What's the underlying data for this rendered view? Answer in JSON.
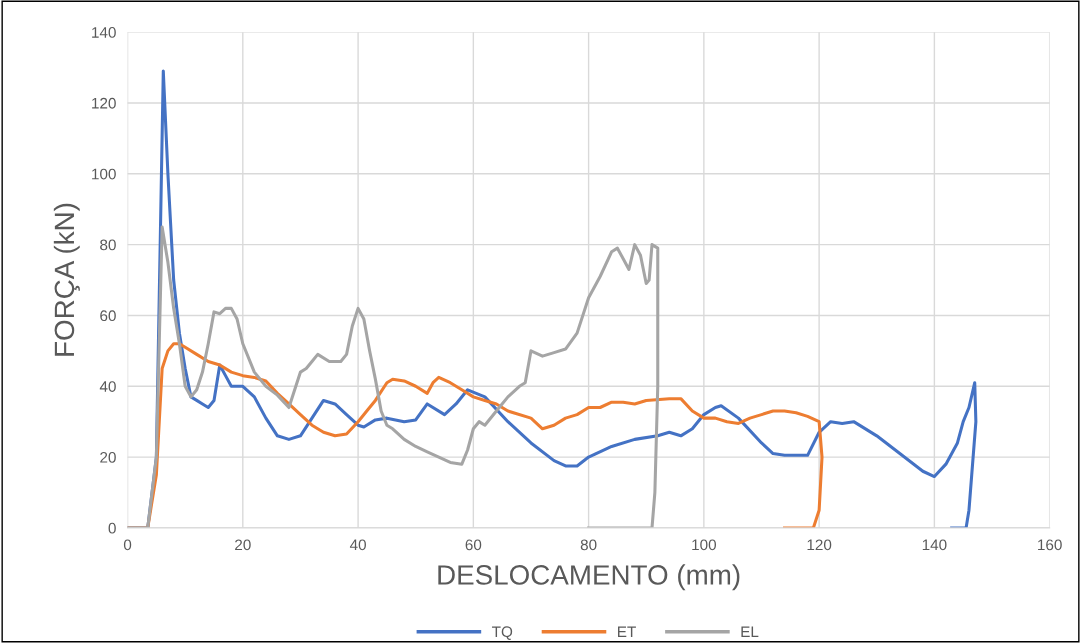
{
  "chart_data": {
    "type": "line",
    "xlabel": "DESLOCAMENTO (mm)",
    "ylabel": "FORÇA (kN)",
    "xlim": [
      0,
      160
    ],
    "xticks": [
      0,
      20,
      40,
      60,
      80,
      100,
      120,
      140,
      160
    ],
    "ylim": [
      0,
      140
    ],
    "yticks": [
      0,
      20,
      40,
      60,
      80,
      100,
      120,
      140
    ],
    "grid": true,
    "legend": "bottom",
    "marker": "none",
    "line_style": "solid",
    "series": [
      {
        "name": "TQ",
        "color": "#4472c4",
        "x": [
          0,
          3.5,
          5,
          6.2,
          7,
          8,
          9,
          10,
          11,
          12,
          13,
          14,
          15,
          16,
          17,
          18,
          20,
          22,
          24,
          26,
          28,
          30,
          32,
          34,
          36,
          38,
          40,
          41,
          43,
          45,
          48,
          50,
          52,
          55,
          57,
          59,
          62,
          66,
          70,
          74,
          76,
          78,
          80,
          84,
          88,
          92,
          94,
          96,
          98,
          100,
          102,
          103,
          106,
          110,
          112,
          114,
          118,
          120,
          122,
          124,
          126,
          130,
          134,
          138,
          140,
          142,
          144,
          145,
          146,
          147,
          147.2,
          146,
          145.5,
          143
        ],
        "values": [
          0,
          0,
          20,
          129,
          100,
          70,
          55,
          45,
          37,
          36,
          35,
          34,
          36,
          46,
          43,
          40,
          40,
          37,
          31,
          26,
          25,
          26,
          31,
          36,
          35,
          32,
          29,
          28.5,
          30.5,
          31,
          30,
          30.5,
          35,
          32,
          35,
          39,
          37,
          30,
          24,
          19,
          17.5,
          17.5,
          20,
          23,
          25,
          26,
          27,
          26,
          28,
          32,
          34,
          34.5,
          31,
          24,
          21,
          20.5,
          20.5,
          27,
          30,
          29.5,
          30,
          26,
          21,
          16,
          14.5,
          18,
          24,
          30,
          34,
          41,
          30,
          5,
          0,
          0
        ]
      },
      {
        "name": "ET",
        "color": "#ed7d31",
        "x": [
          0,
          3.5,
          5,
          5.5,
          6,
          7,
          8,
          9,
          10,
          12,
          14,
          16,
          18,
          20,
          22,
          24,
          26,
          28,
          30,
          32,
          34,
          36,
          38,
          40,
          42,
          43,
          45,
          46,
          48,
          50,
          52,
          53,
          54,
          56,
          58,
          60,
          62,
          64,
          66,
          70,
          72,
          74,
          76,
          78,
          80,
          82,
          84,
          86,
          88,
          90,
          94,
          96,
          98,
          100,
          102,
          104,
          106,
          108,
          110,
          112,
          114,
          116,
          118,
          120,
          120.5,
          120,
          119,
          114
        ],
        "values": [
          0,
          0,
          15,
          30,
          45,
          50,
          52,
          52,
          51,
          49,
          47,
          46,
          44,
          43,
          42.5,
          41.5,
          38,
          35,
          32,
          29,
          27,
          26,
          26.5,
          30,
          34,
          36,
          41,
          42,
          41.5,
          40,
          38,
          41,
          42.5,
          41,
          39,
          37,
          36,
          35,
          33,
          31,
          28,
          29,
          31,
          32,
          34,
          34,
          35.5,
          35.5,
          35,
          36,
          36.5,
          36.5,
          33,
          31,
          31,
          30,
          29.5,
          31,
          32,
          33,
          33,
          32.5,
          31.5,
          30,
          20,
          5,
          0,
          0
        ]
      },
      {
        "name": "EL",
        "color": "#a5a5a5",
        "x": [
          0,
          3.5,
          5,
          6,
          7,
          8,
          9,
          10,
          11,
          12,
          13,
          14,
          15,
          16,
          17,
          18,
          19,
          20,
          22,
          24,
          26,
          28,
          29,
          30,
          31,
          32,
          33,
          35,
          37,
          38,
          39,
          40,
          41,
          42,
          43,
          44,
          45,
          46,
          48,
          50,
          52,
          54,
          56,
          58,
          59,
          60,
          61,
          62,
          64,
          66,
          68,
          69,
          70,
          72,
          74,
          76,
          78,
          80,
          82,
          84,
          85,
          86,
          87,
          88,
          89,
          90,
          90.5,
          91,
          92,
          92,
          91.5,
          91,
          80
        ],
        "values": [
          0,
          0,
          20,
          85,
          75,
          62,
          52,
          40,
          37,
          39,
          44,
          52,
          61,
          60.5,
          62,
          62,
          59,
          52,
          44,
          40,
          37.5,
          34,
          39,
          44,
          45,
          47,
          49,
          47,
          47,
          49,
          57,
          62,
          59,
          50,
          42,
          33,
          29,
          28,
          25,
          23,
          21.5,
          20,
          18.5,
          18,
          22,
          28,
          30,
          29,
          33,
          37,
          40,
          41,
          50,
          48.5,
          49.5,
          50.5,
          55,
          65,
          71,
          78,
          79,
          76,
          73,
          80,
          77,
          69,
          70,
          80,
          79,
          40,
          10,
          0,
          0
        ]
      }
    ]
  }
}
